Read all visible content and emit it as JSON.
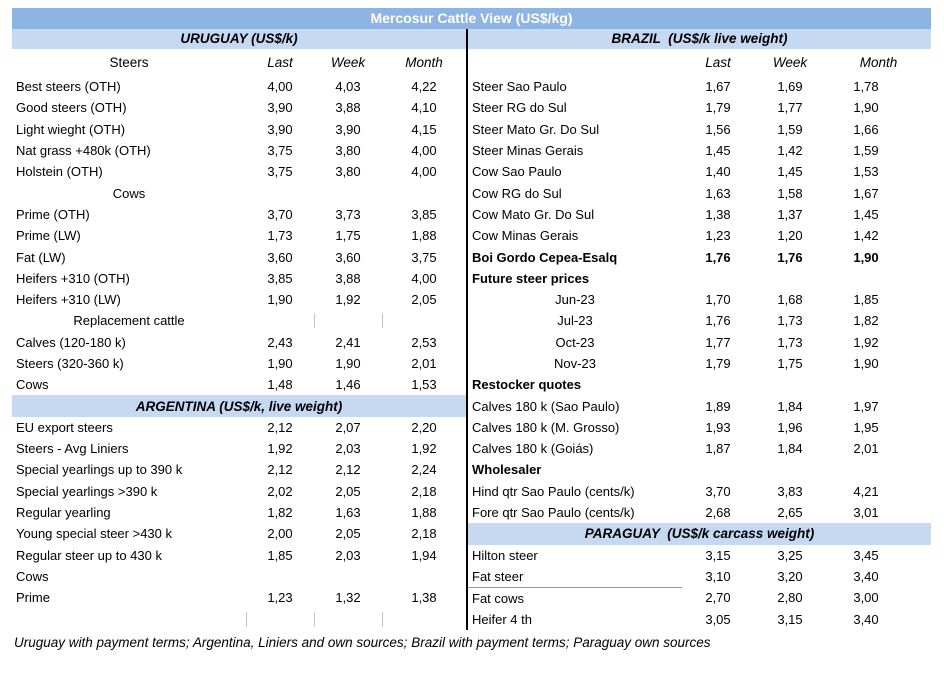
{
  "title": "Mercosur Cattle View (US$/kg)",
  "columns": [
    "Last",
    "Week",
    "Month"
  ],
  "colors": {
    "title_bar_bg": "#8DB4E2",
    "title_text": "#FFFFFF",
    "band_bg": "#C5D9F1",
    "divider": "#000000",
    "tick": "#C4C4C4"
  },
  "left": {
    "section_header": "URUGUAY (US$/k)",
    "first_col_header": "Steers",
    "rows": [
      {
        "type": "data",
        "label": "Best steers (OTH)",
        "values": [
          "4,00",
          "4,03",
          "4,22"
        ]
      },
      {
        "type": "data",
        "label": "Good steers (OTH)",
        "values": [
          "3,90",
          "3,88",
          "4,10"
        ]
      },
      {
        "type": "data",
        "label": "Light wieght (OTH)",
        "values": [
          "3,90",
          "3,90",
          "4,15"
        ]
      },
      {
        "type": "data",
        "label": "Nat grass +480k (OTH)",
        "values": [
          "3,75",
          "3,80",
          "4,00"
        ]
      },
      {
        "type": "data",
        "label": "Holstein (OTH)",
        "values": [
          "3,75",
          "3,80",
          "4,00"
        ]
      },
      {
        "type": "center",
        "label": "Cows"
      },
      {
        "type": "data",
        "label": "Prime (OTH)",
        "values": [
          "3,70",
          "3,73",
          "3,85"
        ]
      },
      {
        "type": "data",
        "label": "Prime (LW)",
        "values": [
          "1,73",
          "1,75",
          "1,88"
        ]
      },
      {
        "type": "data",
        "label": "Fat (LW)",
        "values": [
          "3,60",
          "3,60",
          "3,75"
        ]
      },
      {
        "type": "data",
        "label": "Heifers +310 (OTH)",
        "values": [
          "3,85",
          "3,88",
          "4,00"
        ]
      },
      {
        "type": "data",
        "label": "Heifers +310 (LW)",
        "values": [
          "1,90",
          "1,92",
          "2,05"
        ]
      },
      {
        "type": "center",
        "label": "Replacement cattle",
        "ticks": [
          "week",
          "month"
        ]
      },
      {
        "type": "data",
        "label": "Calves (120-180 k)",
        "values": [
          "2,43",
          "2,41",
          "2,53"
        ]
      },
      {
        "type": "data",
        "label": "Steers (320-360 k)",
        "values": [
          "1,90",
          "1,90",
          "2,01"
        ]
      },
      {
        "type": "data",
        "label": "Cows",
        "values": [
          "1,48",
          "1,46",
          "1,53"
        ]
      },
      {
        "type": "band",
        "label": "ARGENTINA (US$/k, live weight)"
      },
      {
        "type": "data",
        "label": "EU export steers",
        "values": [
          "2,12",
          "2,07",
          "2,20"
        ]
      },
      {
        "type": "data",
        "label": "Steers - Avg Liniers",
        "values": [
          "1,92",
          "2,03",
          "1,92"
        ]
      },
      {
        "type": "data",
        "label": "Special yearlings up to 390 k",
        "values": [
          "2,12",
          "2,12",
          "2,24"
        ]
      },
      {
        "type": "data",
        "label": "Special yearlings >390 k",
        "values": [
          "2,02",
          "2,05",
          "2,18"
        ]
      },
      {
        "type": "data",
        "label": "Regular yearling",
        "values": [
          "1,82",
          "1,63",
          "1,88"
        ]
      },
      {
        "type": "data",
        "label": "Young special steer >430 k",
        "values": [
          "2,00",
          "2,05",
          "2,18"
        ]
      },
      {
        "type": "data",
        "label": "Regular steer up to 430 k",
        "values": [
          "1,85",
          "2,03",
          "1,94"
        ]
      },
      {
        "type": "data",
        "label": "Cows",
        "values": []
      },
      {
        "type": "data",
        "label": "Prime",
        "values": [
          "1,23",
          "1,32",
          "1,38"
        ]
      },
      {
        "type": "empty",
        "ticks": [
          "last",
          "week",
          "month"
        ]
      }
    ]
  },
  "right": {
    "section_header": "BRAZIL  (US$/k live weight)",
    "first_col_header": "",
    "rows": [
      {
        "type": "data",
        "label": "Steer Sao Paulo",
        "values": [
          "1,67",
          "1,69",
          "1,78"
        ]
      },
      {
        "type": "data",
        "label": "Steer RG do Sul",
        "values": [
          "1,79",
          "1,77",
          "1,90"
        ]
      },
      {
        "type": "data",
        "label": "Steer Mato Gr. Do Sul",
        "values": [
          "1,56",
          "1,59",
          "1,66"
        ]
      },
      {
        "type": "data",
        "label": "Steer Minas Gerais",
        "values": [
          "1,45",
          "1,42",
          "1,59"
        ]
      },
      {
        "type": "data",
        "label": "Cow Sao Paulo",
        "values": [
          "1,40",
          "1,45",
          "1,53"
        ]
      },
      {
        "type": "data",
        "label": "Cow RG do Sul",
        "values": [
          "1,63",
          "1,58",
          "1,67"
        ]
      },
      {
        "type": "data",
        "label": "Cow Mato Gr. Do Sul",
        "values": [
          "1,38",
          "1,37",
          "1,45"
        ]
      },
      {
        "type": "data",
        "label": "Cow Minas Gerais",
        "values": [
          "1,23",
          "1,20",
          "1,42"
        ]
      },
      {
        "type": "bolddata",
        "label": "Boi Gordo Cepea-Esalq",
        "values": [
          "1,76",
          "1,76",
          "1,90"
        ]
      },
      {
        "type": "boldleft",
        "label": "Future steer prices"
      },
      {
        "type": "centerdata",
        "label": "Jun-23",
        "values": [
          "1,70",
          "1,68",
          "1,85"
        ]
      },
      {
        "type": "centerdata",
        "label": "Jul-23",
        "values": [
          "1,76",
          "1,73",
          "1,82"
        ]
      },
      {
        "type": "centerdata",
        "label": "Oct-23",
        "values": [
          "1,77",
          "1,73",
          "1,92"
        ]
      },
      {
        "type": "centerdata",
        "label": "Nov-23",
        "values": [
          "1,79",
          "1,75",
          "1,90"
        ]
      },
      {
        "type": "boldleft",
        "label": "Restocker quotes"
      },
      {
        "type": "data",
        "label": "Calves 180 k (Sao Paulo)",
        "values": [
          "1,89",
          "1,84",
          "1,97"
        ]
      },
      {
        "type": "data",
        "label": "Calves 180 k (M. Grosso)",
        "values": [
          "1,93",
          "1,96",
          "1,95"
        ]
      },
      {
        "type": "data",
        "label": "Calves 180 k (Goiás)",
        "values": [
          "1,87",
          "1,84",
          "2,01"
        ]
      },
      {
        "type": "boldleft",
        "label": "Wholesaler"
      },
      {
        "type": "data",
        "label": "Hind qtr Sao Paulo (cents/k)",
        "values": [
          "3,70",
          "3,83",
          "4,21"
        ]
      },
      {
        "type": "data",
        "label": "Fore qtr Sao Paulo (cents/k)",
        "values": [
          "2,68",
          "2,65",
          "3,01"
        ]
      },
      {
        "type": "band",
        "label": "PARAGUAY  (US$/k carcass weight)"
      },
      {
        "type": "data",
        "label": "Hilton steer",
        "values": [
          "3,15",
          "3,25",
          "3,45"
        ]
      },
      {
        "type": "data",
        "label": "Fat steer",
        "values": [
          "3,10",
          "3,20",
          "3,40"
        ],
        "underline": true
      },
      {
        "type": "data",
        "label": "Fat cows",
        "values": [
          "2,70",
          "2,80",
          "3,00"
        ]
      },
      {
        "type": "data",
        "label": "Heifer 4 th",
        "values": [
          "3,05",
          "3,15",
          "3,40"
        ]
      }
    ]
  },
  "footnote": "Uruguay with payment terms; Argentina, Liniers and own sources; Brazil with payment terms; Paraguay own sources"
}
